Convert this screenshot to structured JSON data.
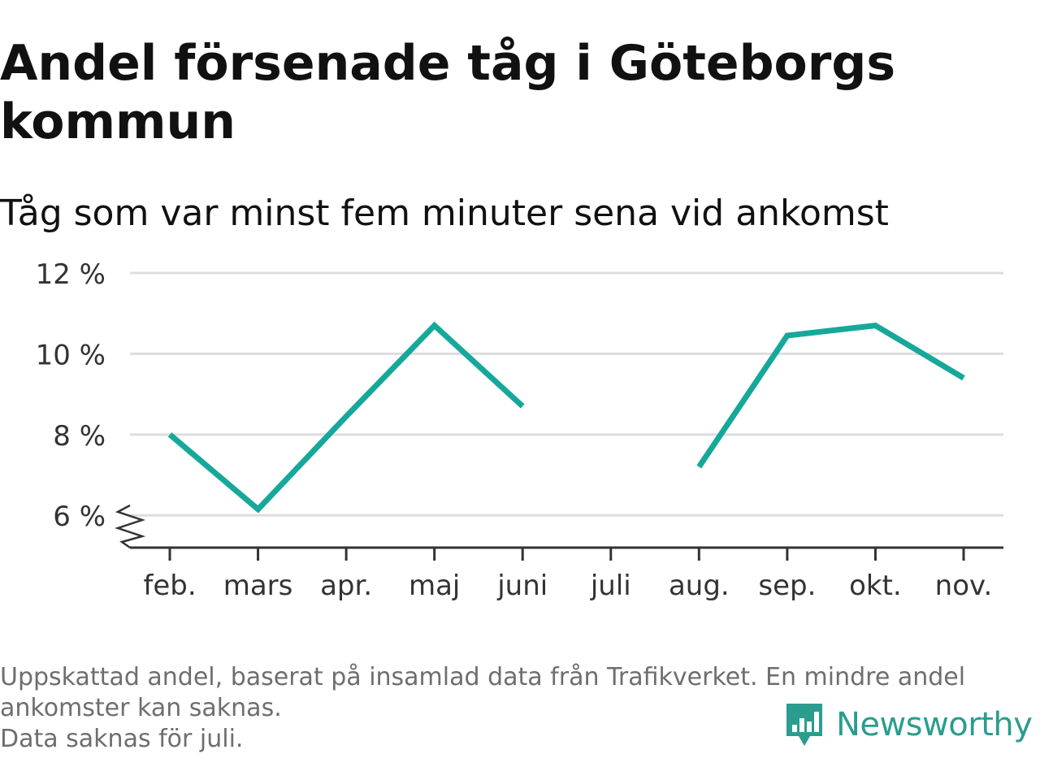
{
  "title": "Andel försenade tåg i Göteborgs kommun",
  "subtitle": "Tåg som var minst fem minuter sena vid ankomst",
  "notes": [
    "Uppskattad andel, baserat på insamlad data från Trafikverket. En mindre andel",
    "ankomster kan saknas.",
    "Data saknas för juli."
  ],
  "brand": {
    "name": "Newsworthy",
    "logo_icon": "bar-chart-speech-bubble-icon"
  },
  "colors": {
    "line": "#16a89a",
    "grid": "#dddddd",
    "axis": "#333333",
    "brand": "#2a9d8f"
  },
  "chart_data": {
    "type": "line",
    "categories": [
      "feb.",
      "mars",
      "apr.",
      "maj",
      "juni",
      "juli",
      "aug.",
      "sep.",
      "okt.",
      "nov."
    ],
    "series": [
      {
        "values": [
          8.0,
          6.15,
          8.45,
          10.7,
          8.7,
          null,
          7.2,
          10.45,
          10.7,
          9.4
        ]
      }
    ],
    "ylim": [
      5.2,
      12
    ],
    "yticks": [
      6,
      8,
      10,
      12
    ],
    "ytick_labels": [
      "6 %",
      "8 %",
      "10 %",
      "12 %"
    ],
    "xlabel": "",
    "ylabel": "",
    "grid": true,
    "axis_break": true
  }
}
